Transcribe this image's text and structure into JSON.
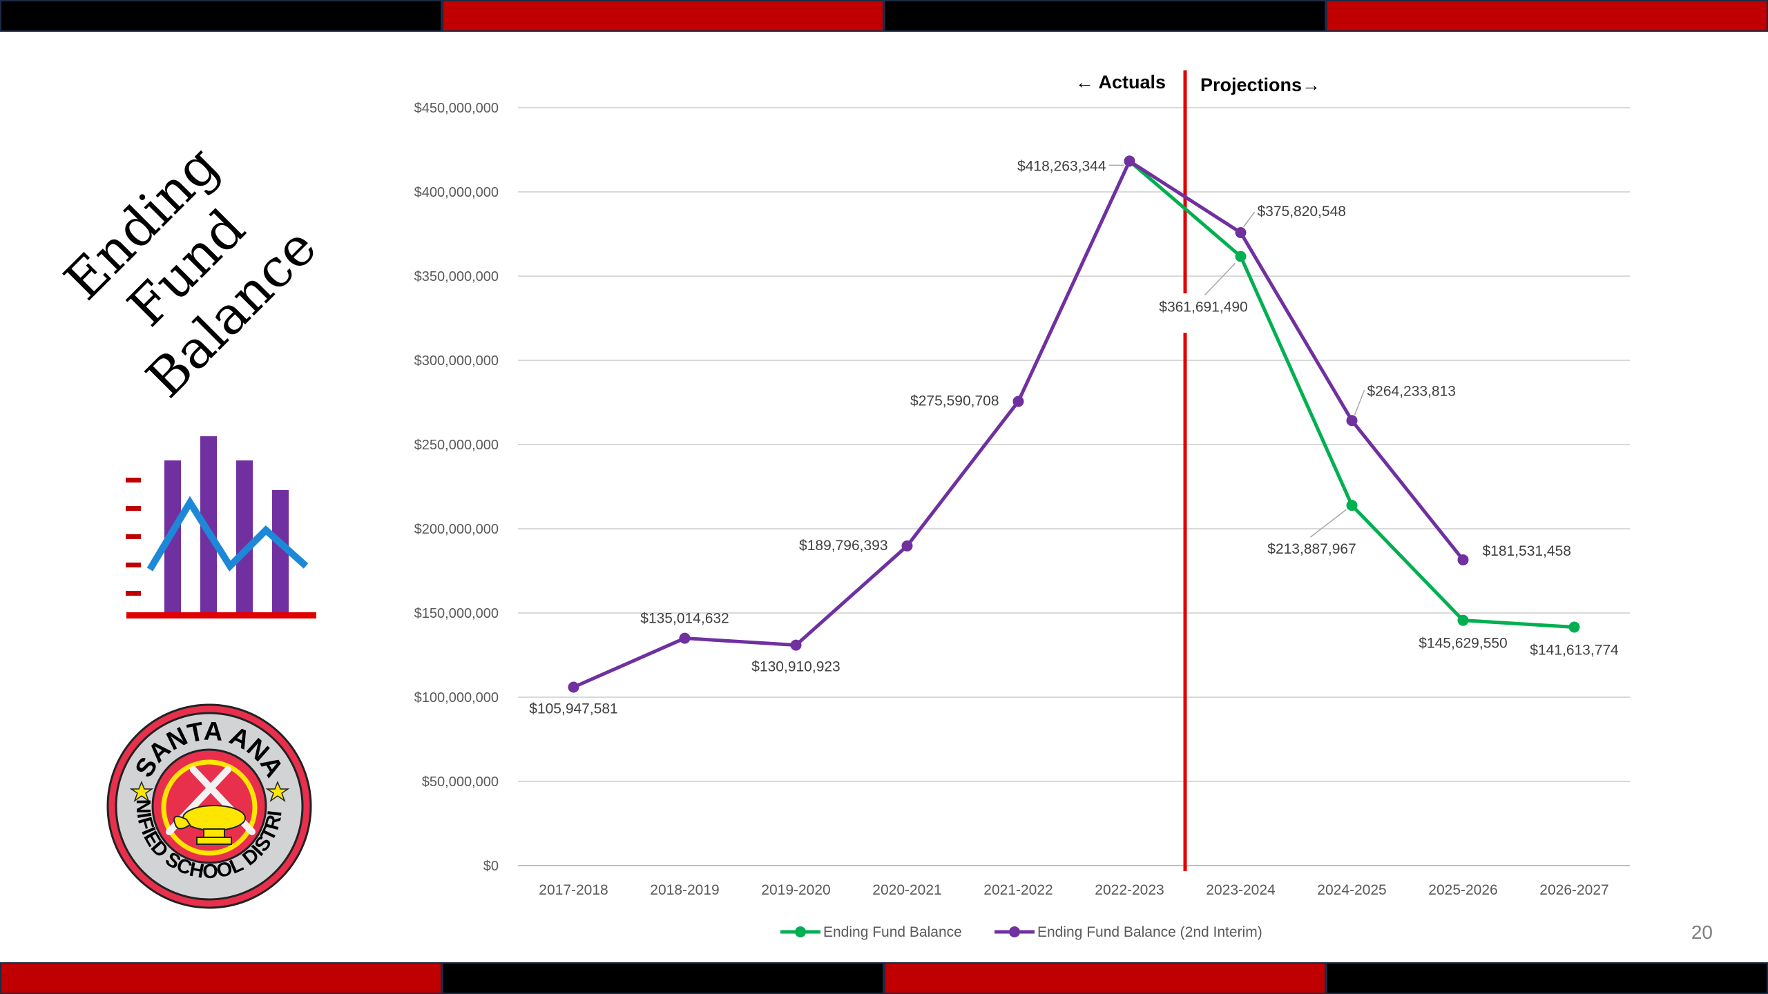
{
  "slide": {
    "title_line1": "Ending Fund",
    "title_line2": "Balance",
    "page_number": "20",
    "band_colors": [
      "#000000",
      "#c00000",
      "#000000",
      "#c00000"
    ],
    "bottom_band_colors": [
      "#c00000",
      "#000000",
      "#c00000",
      "#000000"
    ],
    "logo": {
      "text_top": "SANTA ANA",
      "text_bottom": "UNIFIED SCHOOL DISTRICT",
      "ring_color": "#d1d3d4",
      "center_color": "#e8304d",
      "lamp_color": "#ffe600"
    },
    "icon": "bar-and-line-chart-icon"
  },
  "chart_data": {
    "type": "line",
    "categories": [
      "2017-2018",
      "2018-2019",
      "2019-2020",
      "2020-2021",
      "2021-2022",
      "2022-2023",
      "2023-2024",
      "2024-2025",
      "2025-2026",
      "2026-2027"
    ],
    "ylim": [
      0,
      450000000
    ],
    "yticks": [
      {
        "value": 0,
        "label": "$0"
      },
      {
        "value": 50000000,
        "label": "$50,000,000"
      },
      {
        "value": 100000000,
        "label": "$100,000,000"
      },
      {
        "value": 150000000,
        "label": "$150,000,000"
      },
      {
        "value": 200000000,
        "label": "$200,000,000"
      },
      {
        "value": 250000000,
        "label": "$250,000,000"
      },
      {
        "value": 300000000,
        "label": "$300,000,000"
      },
      {
        "value": 350000000,
        "label": "$350,000,000"
      },
      {
        "value": 400000000,
        "label": "$400,000,000"
      },
      {
        "value": 450000000,
        "label": "$450,000,000"
      }
    ],
    "grid": true,
    "legend": "bottom",
    "divider_between": [
      "2022-2023",
      "2023-2024"
    ],
    "divider_color": "#e00000",
    "annotation_left": "Actuals",
    "annotation_right": "Projections",
    "series": [
      {
        "name": "Ending Fund Balance",
        "color": "#00b050",
        "values": [
          null,
          null,
          null,
          null,
          null,
          418263344,
          361691490,
          213887967,
          145629550,
          141613774
        ],
        "labels": [
          null,
          null,
          null,
          null,
          null,
          null,
          "$361,691,490",
          "$213,887,967",
          "$145,629,550",
          "$141,613,774"
        ]
      },
      {
        "name": "Ending Fund Balance (2nd Interim)",
        "color": "#7030a0",
        "values": [
          105947581,
          135014632,
          130910923,
          189796393,
          275590708,
          418263344,
          375820548,
          264233813,
          181531458,
          null
        ],
        "labels": [
          "$105,947,581",
          "$135,014,632",
          "$130,910,923",
          "$189,796,393",
          "$275,590,708",
          "$418,263,344",
          "$375,820,548",
          "$264,233,813",
          "$181,531,458",
          null
        ]
      }
    ]
  }
}
